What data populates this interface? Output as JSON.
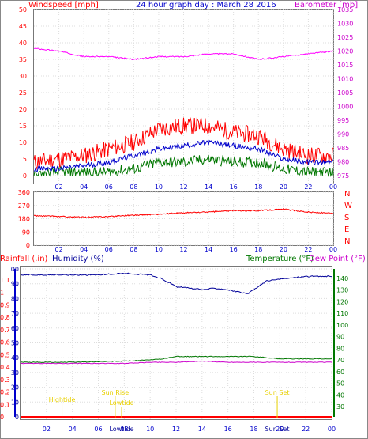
{
  "chart_data": {
    "title": "24 hour graph day : March 28 2016",
    "x_ticks": [
      "02",
      "04",
      "06",
      "08",
      "10",
      "12",
      "14",
      "16",
      "18",
      "20",
      "22",
      "00"
    ],
    "colors": {
      "wind": "#ff0000",
      "baro": "#ff00ff",
      "gust_blue": "#0000cc",
      "gust_green": "#007700",
      "humidity": "#000099",
      "temp": "#007700",
      "dew": "#cc00cc",
      "rain": "#ff0000",
      "astro": "#e8d000"
    },
    "panels": [
      {
        "id": "wind_baro",
        "type": "line",
        "left_label": "Windspeed [mph]",
        "right_label": "Barometer [mb]",
        "left_ticks": [
          "0",
          "5",
          "10",
          "15",
          "20",
          "25",
          "30",
          "35",
          "40",
          "45",
          "50"
        ],
        "right_ticks": [
          "975",
          "980",
          "985",
          "990",
          "995",
          "1000",
          "1005",
          "1010",
          "1015",
          "1020",
          "1025",
          "1030",
          "1035"
        ],
        "ylim_left": [
          0,
          50
        ],
        "ylim_right": [
          975,
          1035
        ],
        "series": [
          {
            "key": "wind_max",
            "values": [
              [
                0,
                4
              ],
              [
                2,
                5
              ],
              [
                4,
                6
              ],
              [
                6,
                8
              ],
              [
                8,
                10
              ],
              [
                10,
                14
              ],
              [
                12,
                15
              ],
              [
                14,
                15
              ],
              [
                16,
                13
              ],
              [
                18,
                12
              ],
              [
                20,
                8
              ],
              [
                22,
                6
              ],
              [
                24,
                6
              ]
            ]
          },
          {
            "key": "wind_avg",
            "values": [
              [
                0,
                2
              ],
              [
                2,
                2
              ],
              [
                4,
                3
              ],
              [
                6,
                4
              ],
              [
                8,
                6
              ],
              [
                10,
                8
              ],
              [
                12,
                9
              ],
              [
                14,
                10
              ],
              [
                16,
                9
              ],
              [
                18,
                8
              ],
              [
                20,
                5
              ],
              [
                22,
                4
              ],
              [
                24,
                4
              ]
            ]
          },
          {
            "key": "wind_min",
            "values": [
              [
                0,
                0
              ],
              [
                2,
                1
              ],
              [
                4,
                1
              ],
              [
                6,
                1
              ],
              [
                8,
                2
              ],
              [
                10,
                4
              ],
              [
                12,
                4
              ],
              [
                14,
                5
              ],
              [
                16,
                4
              ],
              [
                18,
                4
              ],
              [
                20,
                2
              ],
              [
                22,
                1
              ],
              [
                24,
                1
              ]
            ]
          },
          {
            "key": "barometer",
            "values": [
              [
                0,
                1021
              ],
              [
                2,
                1020
              ],
              [
                4,
                1018
              ],
              [
                6,
                1018
              ],
              [
                8,
                1017
              ],
              [
                10,
                1018
              ],
              [
                12,
                1018
              ],
              [
                14,
                1019
              ],
              [
                16,
                1019
              ],
              [
                18,
                1017
              ],
              [
                20,
                1018
              ],
              [
                22,
                1019
              ],
              [
                24,
                1020
              ]
            ]
          }
        ]
      },
      {
        "id": "direction",
        "type": "line",
        "left_ticks": [
          "0",
          "90",
          "180",
          "270",
          "360"
        ],
        "ylim": [
          0,
          360
        ],
        "compass": [
          "N",
          "W",
          "S",
          "E",
          "N"
        ],
        "series": [
          {
            "key": "direction",
            "values": [
              [
                0,
                200
              ],
              [
                2,
                195
              ],
              [
                4,
                190
              ],
              [
                6,
                195
              ],
              [
                8,
                205
              ],
              [
                10,
                210
              ],
              [
                12,
                220
              ],
              [
                14,
                225
              ],
              [
                16,
                235
              ],
              [
                18,
                235
              ],
              [
                20,
                245
              ],
              [
                22,
                225
              ],
              [
                24,
                215
              ]
            ]
          }
        ]
      },
      {
        "id": "rain_hum_temp",
        "type": "line",
        "left_label": "Rainfall (.in)",
        "hum_label": "Humidity (%)",
        "temp_label": "Temperature (°F)",
        "dew_label": "Dew Point (°F)",
        "rain_ticks": [
          "0",
          "0.1",
          "0.2",
          "0.3",
          "0.4",
          "0.5",
          "0.6",
          "0.7",
          "0.8",
          "0.9",
          "1",
          "1.1"
        ],
        "hum_ticks": [
          "0",
          "10",
          "20",
          "30",
          "40",
          "50",
          "60",
          "70",
          "80",
          "90",
          "100"
        ],
        "temp_ticks": [
          "30",
          "40",
          "50",
          "60",
          "70",
          "80",
          "90",
          "100",
          "110",
          "120",
          "130",
          "140"
        ],
        "ylim_hum": [
          0,
          100
        ],
        "ylim_temp": [
          30,
          140
        ],
        "series": [
          {
            "key": "humidity",
            "values": [
              [
                0,
                96
              ],
              [
                2,
                96
              ],
              [
                4,
                96
              ],
              [
                6,
                96
              ],
              [
                8,
                97
              ],
              [
                10,
                96
              ],
              [
                11,
                93
              ],
              [
                12,
                88
              ],
              [
                14,
                86
              ],
              [
                15,
                87
              ],
              [
                16,
                86
              ],
              [
                17,
                84
              ],
              [
                17.5,
                83
              ],
              [
                18,
                86
              ],
              [
                19,
                92
              ],
              [
                20,
                93
              ],
              [
                22,
                95
              ],
              [
                24,
                95
              ]
            ]
          },
          {
            "key": "temperature",
            "values": [
              [
                0,
                68
              ],
              [
                4,
                68
              ],
              [
                8,
                69
              ],
              [
                10,
                70
              ],
              [
                11,
                71
              ],
              [
                12,
                73
              ],
              [
                14,
                73
              ],
              [
                16,
                73
              ],
              [
                17,
                73
              ],
              [
                18,
                73
              ],
              [
                20,
                71
              ],
              [
                22,
                71
              ],
              [
                24,
                71
              ]
            ]
          },
          {
            "key": "dewpoint",
            "values": [
              [
                0,
                67
              ],
              [
                4,
                67
              ],
              [
                8,
                67
              ],
              [
                10,
                68
              ],
              [
                12,
                68
              ],
              [
                14,
                69
              ],
              [
                16,
                68
              ],
              [
                18,
                68
              ],
              [
                20,
                68
              ],
              [
                22,
                68
              ],
              [
                24,
                68
              ]
            ]
          },
          {
            "key": "rainfall",
            "values": [
              [
                0,
                0
              ],
              [
                24,
                0
              ]
            ]
          }
        ],
        "annotations": [
          {
            "text": "Hightide",
            "x": 3.2,
            "level": "upper"
          },
          {
            "text": "Sun Rise",
            "x": 7.3,
            "level": "middle"
          },
          {
            "text": "Lowtide",
            "x": 7.8,
            "level": "lower"
          },
          {
            "text": "Sun Set",
            "x": 19.8,
            "level": "middle"
          }
        ],
        "bottom_markers": [
          {
            "text": "Lowtide",
            "x": 7.8
          },
          {
            "text": "Sun Set",
            "x": 19.8
          }
        ]
      }
    ]
  }
}
